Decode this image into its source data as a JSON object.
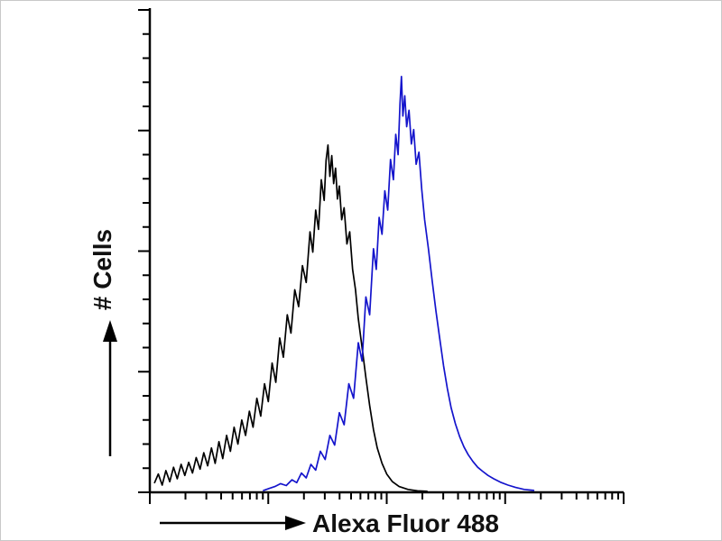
{
  "page": {
    "background": "#ffffff",
    "border_color": "#c9c9c9"
  },
  "chart_data": {
    "type": "line",
    "chart_kind": "flow-cytometry-histogram",
    "title": "",
    "xlabel": "Alexa Fluor 488",
    "ylabel": "# Cells",
    "x_scale": "log",
    "x_decades": 4,
    "y_scale": "linear",
    "x_tick_labels": [],
    "y_tick_labels": [],
    "grid": false,
    "legend": "none",
    "axis_color": "#000000",
    "axes_ticks": {
      "y_minor_step": 0.05,
      "y_major_step": 0.25,
      "major_len": 13,
      "minor_len": 8
    },
    "points_format": "[x_fraction_of_axis_width, y_fraction_of_axis_height]",
    "series": [
      {
        "name": "black-trace",
        "color": "#000000",
        "points": [
          [
            0.01,
            0.02
          ],
          [
            0.018,
            0.038
          ],
          [
            0.026,
            0.015
          ],
          [
            0.034,
            0.045
          ],
          [
            0.042,
            0.022
          ],
          [
            0.05,
            0.052
          ],
          [
            0.058,
            0.028
          ],
          [
            0.066,
            0.058
          ],
          [
            0.074,
            0.035
          ],
          [
            0.082,
            0.062
          ],
          [
            0.09,
            0.04
          ],
          [
            0.098,
            0.072
          ],
          [
            0.106,
            0.048
          ],
          [
            0.114,
            0.082
          ],
          [
            0.122,
            0.055
          ],
          [
            0.13,
            0.092
          ],
          [
            0.138,
            0.06
          ],
          [
            0.146,
            0.105
          ],
          [
            0.154,
            0.07
          ],
          [
            0.162,
            0.118
          ],
          [
            0.17,
            0.085
          ],
          [
            0.178,
            0.135
          ],
          [
            0.186,
            0.1
          ],
          [
            0.194,
            0.15
          ],
          [
            0.202,
            0.118
          ],
          [
            0.21,
            0.168
          ],
          [
            0.218,
            0.135
          ],
          [
            0.226,
            0.195
          ],
          [
            0.234,
            0.158
          ],
          [
            0.242,
            0.225
          ],
          [
            0.25,
            0.188
          ],
          [
            0.258,
            0.268
          ],
          [
            0.266,
            0.228
          ],
          [
            0.274,
            0.32
          ],
          [
            0.282,
            0.28
          ],
          [
            0.29,
            0.368
          ],
          [
            0.298,
            0.33
          ],
          [
            0.306,
            0.42
          ],
          [
            0.314,
            0.385
          ],
          [
            0.322,
            0.47
          ],
          [
            0.33,
            0.435
          ],
          [
            0.338,
            0.54
          ],
          [
            0.344,
            0.498
          ],
          [
            0.35,
            0.585
          ],
          [
            0.356,
            0.545
          ],
          [
            0.362,
            0.648
          ],
          [
            0.368,
            0.605
          ],
          [
            0.372,
            0.688
          ],
          [
            0.376,
            0.72
          ],
          [
            0.38,
            0.655
          ],
          [
            0.384,
            0.698
          ],
          [
            0.388,
            0.64
          ],
          [
            0.392,
            0.672
          ],
          [
            0.396,
            0.608
          ],
          [
            0.4,
            0.635
          ],
          [
            0.405,
            0.565
          ],
          [
            0.41,
            0.59
          ],
          [
            0.416,
            0.515
          ],
          [
            0.422,
            0.54
          ],
          [
            0.428,
            0.462
          ],
          [
            0.434,
            0.42
          ],
          [
            0.44,
            0.36
          ],
          [
            0.448,
            0.3
          ],
          [
            0.456,
            0.238
          ],
          [
            0.464,
            0.18
          ],
          [
            0.472,
            0.13
          ],
          [
            0.48,
            0.092
          ],
          [
            0.49,
            0.06
          ],
          [
            0.5,
            0.038
          ],
          [
            0.512,
            0.022
          ],
          [
            0.526,
            0.012
          ],
          [
            0.545,
            0.006
          ],
          [
            0.565,
            0.003
          ],
          [
            0.585,
            0.002
          ]
        ]
      },
      {
        "name": "blue-trace",
        "color": "#1414cc",
        "points": [
          [
            0.24,
            0.004
          ],
          [
            0.252,
            0.008
          ],
          [
            0.264,
            0.012
          ],
          [
            0.276,
            0.018
          ],
          [
            0.288,
            0.014
          ],
          [
            0.3,
            0.026
          ],
          [
            0.31,
            0.02
          ],
          [
            0.32,
            0.04
          ],
          [
            0.33,
            0.03
          ],
          [
            0.34,
            0.058
          ],
          [
            0.35,
            0.046
          ],
          [
            0.36,
            0.085
          ],
          [
            0.37,
            0.068
          ],
          [
            0.38,
            0.118
          ],
          [
            0.39,
            0.098
          ],
          [
            0.4,
            0.165
          ],
          [
            0.41,
            0.14
          ],
          [
            0.42,
            0.225
          ],
          [
            0.43,
            0.195
          ],
          [
            0.44,
            0.31
          ],
          [
            0.448,
            0.272
          ],
          [
            0.456,
            0.405
          ],
          [
            0.464,
            0.368
          ],
          [
            0.472,
            0.505
          ],
          [
            0.478,
            0.462
          ],
          [
            0.484,
            0.57
          ],
          [
            0.49,
            0.535
          ],
          [
            0.496,
            0.625
          ],
          [
            0.502,
            0.585
          ],
          [
            0.508,
            0.69
          ],
          [
            0.514,
            0.648
          ],
          [
            0.519,
            0.742
          ],
          [
            0.524,
            0.7
          ],
          [
            0.528,
            0.805
          ],
          [
            0.531,
            0.862
          ],
          [
            0.534,
            0.78
          ],
          [
            0.538,
            0.822
          ],
          [
            0.542,
            0.758
          ],
          [
            0.547,
            0.792
          ],
          [
            0.552,
            0.722
          ],
          [
            0.557,
            0.752
          ],
          [
            0.562,
            0.68
          ],
          [
            0.568,
            0.705
          ],
          [
            0.574,
            0.628
          ],
          [
            0.58,
            0.565
          ],
          [
            0.588,
            0.505
          ],
          [
            0.596,
            0.438
          ],
          [
            0.604,
            0.375
          ],
          [
            0.612,
            0.318
          ],
          [
            0.62,
            0.262
          ],
          [
            0.628,
            0.215
          ],
          [
            0.636,
            0.175
          ],
          [
            0.645,
            0.142
          ],
          [
            0.654,
            0.115
          ],
          [
            0.663,
            0.094
          ],
          [
            0.672,
            0.078
          ],
          [
            0.682,
            0.064
          ],
          [
            0.692,
            0.052
          ],
          [
            0.702,
            0.044
          ],
          [
            0.714,
            0.035
          ],
          [
            0.726,
            0.028
          ],
          [
            0.74,
            0.021
          ],
          [
            0.756,
            0.015
          ],
          [
            0.772,
            0.01
          ],
          [
            0.79,
            0.006
          ],
          [
            0.81,
            0.004
          ]
        ]
      }
    ]
  }
}
